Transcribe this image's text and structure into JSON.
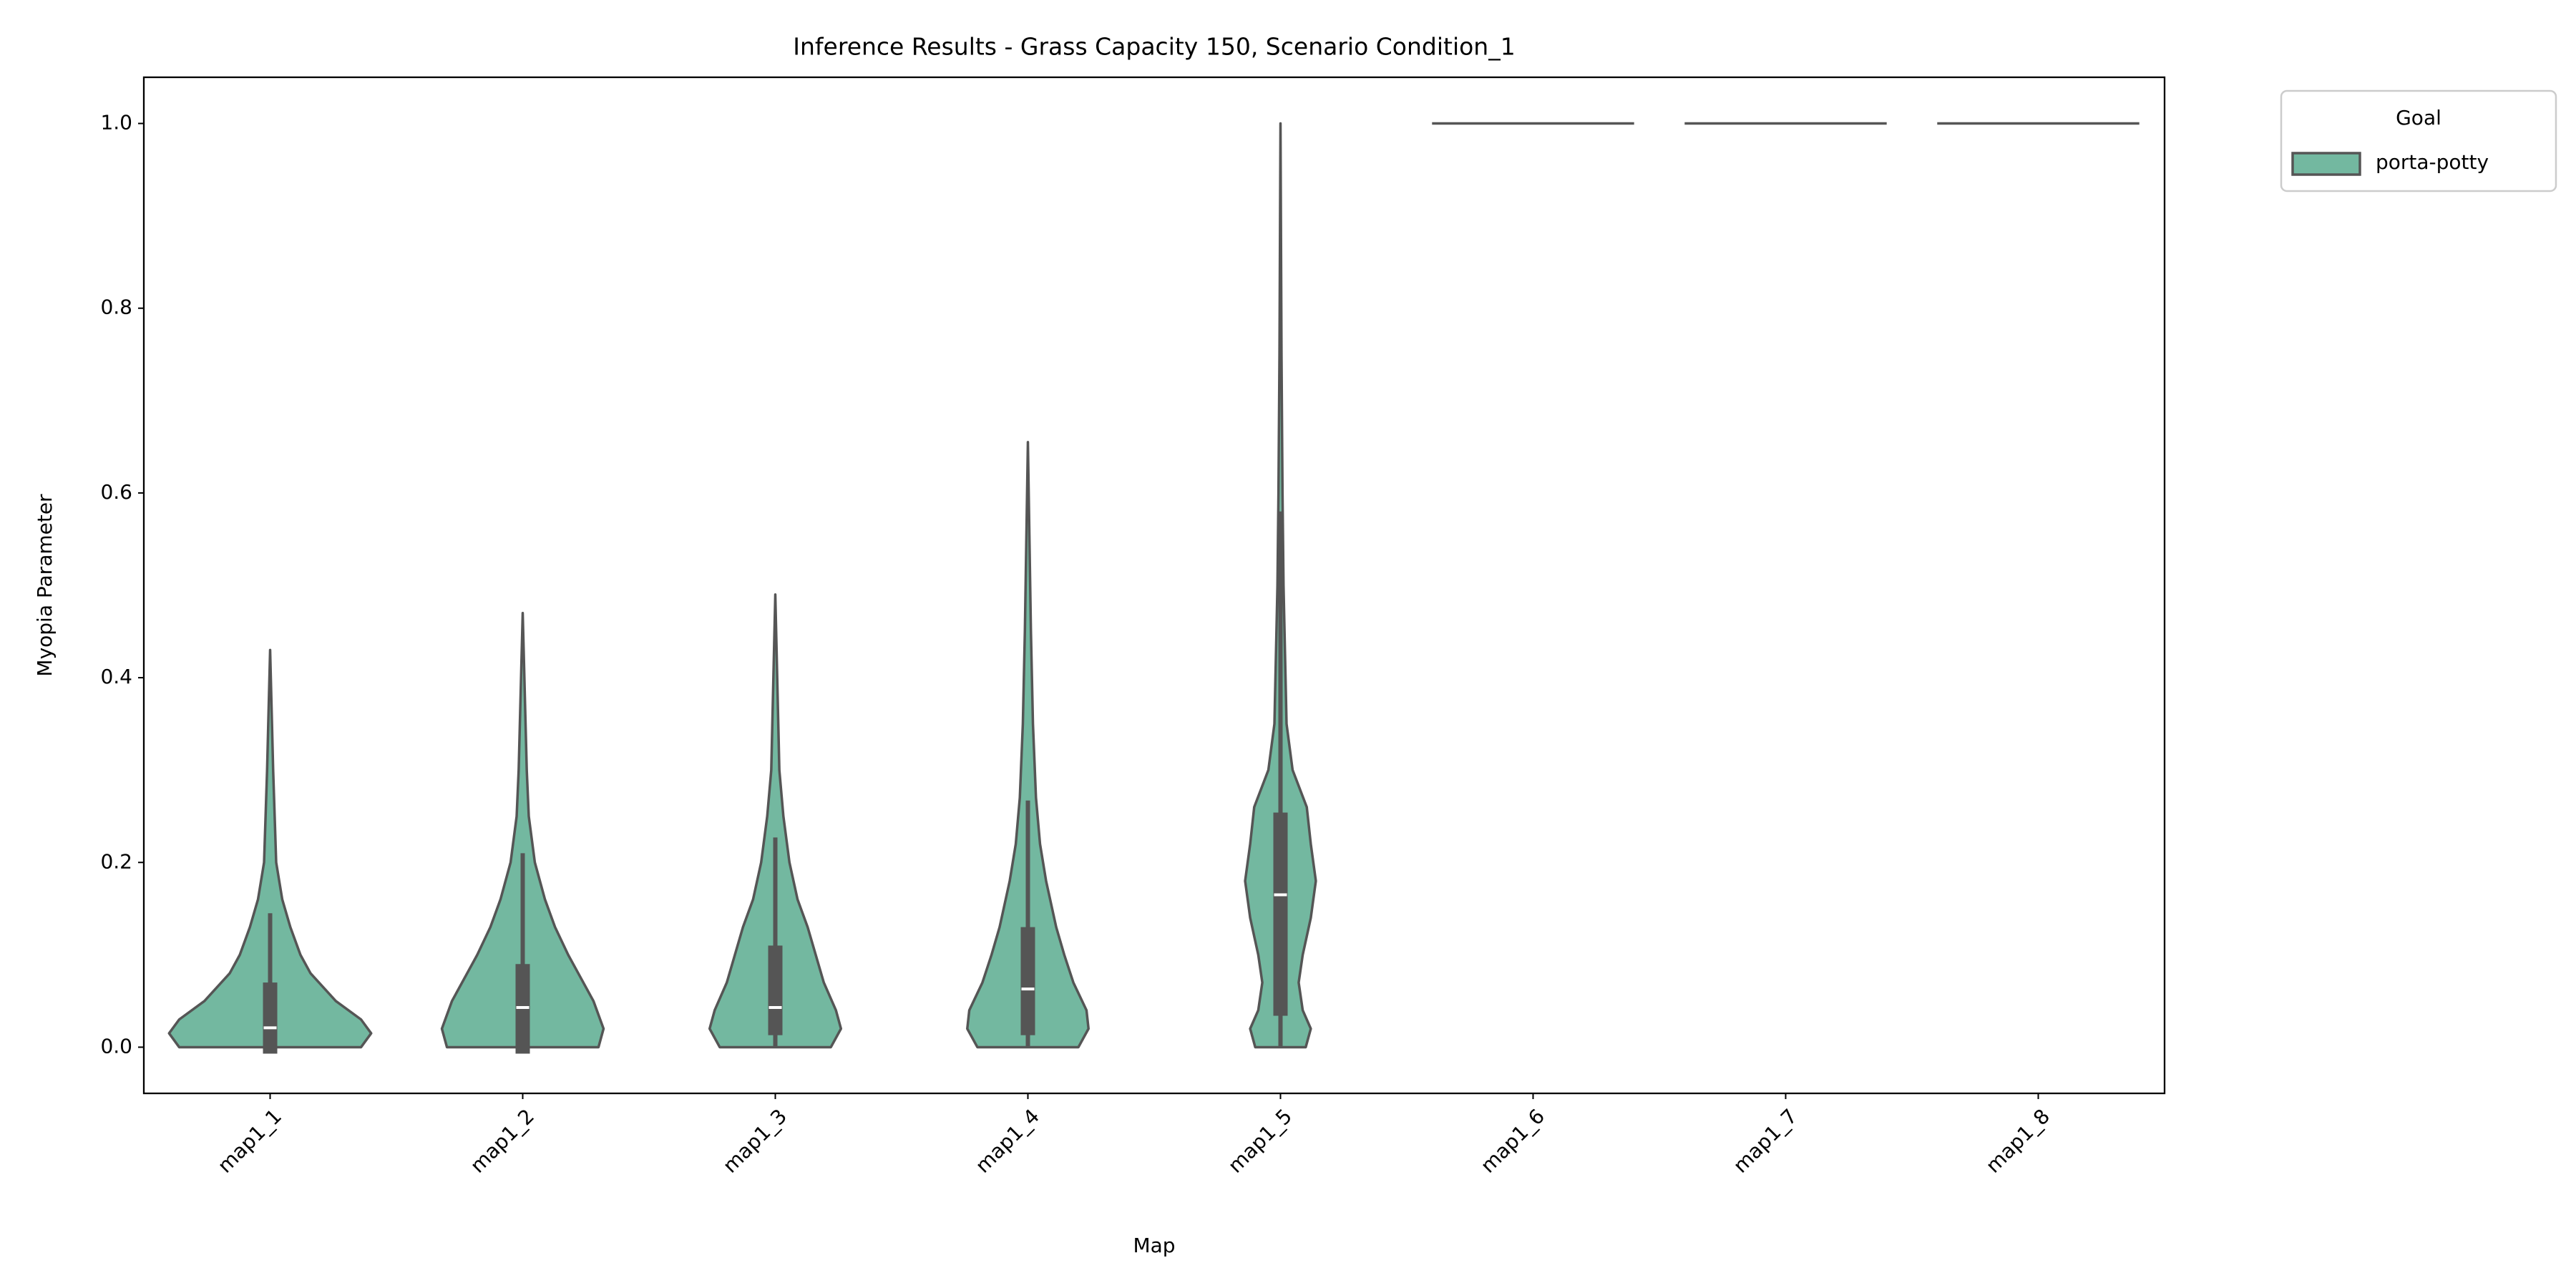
{
  "chart_data": {
    "type": "violin",
    "title": "Inference Results - Grass Capacity 150, Scenario Condition_1",
    "x_label": "Map",
    "y_label": "Myopia Parameter",
    "categories": [
      "map1_1",
      "map1_2",
      "map1_3",
      "map1_4",
      "map1_5",
      "map1_6",
      "map1_7",
      "map1_8"
    ],
    "ylim": [
      -0.05,
      1.05
    ],
    "yticks": [
      {
        "value": 0,
        "label": "0.0"
      },
      {
        "value": 0.2,
        "label": "0.2"
      },
      {
        "value": 0.4,
        "label": "0.4"
      },
      {
        "value": 0.6,
        "label": "0.6"
      },
      {
        "value": 0.8,
        "label": "0.8"
      },
      {
        "value": 1,
        "label": "1.0"
      }
    ],
    "legend": {
      "title": "Goal",
      "position": "outside upper right"
    },
    "series": [
      {
        "name": "porta-potty",
        "color": "#73b8a0",
        "edge_color": "#555555",
        "q1": [
          -0.007,
          -0.007,
          0.013,
          0.013,
          0.034,
          null,
          null,
          null
        ],
        "median": [
          0.021,
          0.043,
          0.043,
          0.063,
          0.165,
          1,
          1,
          1
        ],
        "q3": [
          0.07,
          0.09,
          0.11,
          0.13,
          0.254,
          null,
          null,
          null
        ],
        "whisker_low": [
          0,
          0,
          0,
          0,
          0,
          null,
          null,
          null
        ],
        "whisker_high": [
          0.145,
          0.21,
          0.227,
          0.267,
          0.58,
          null,
          null,
          null
        ],
        "density": [
          {
            "y": [
              0,
              0.015,
              0.03,
              0.05,
              0.08,
              0.1,
              0.13,
              0.16,
              0.2,
              0.3,
              0.43
            ],
            "w": [
              0.9,
              1.0,
              0.9,
              0.65,
              0.4,
              0.3,
              0.2,
              0.12,
              0.06,
              0.03,
              0
            ]
          },
          {
            "y": [
              0,
              0.02,
              0.05,
              0.08,
              0.1,
              0.13,
              0.16,
              0.2,
              0.25,
              0.3,
              0.47
            ],
            "w": [
              0.75,
              0.8,
              0.7,
              0.55,
              0.45,
              0.32,
              0.22,
              0.12,
              0.06,
              0.04,
              0
            ]
          },
          {
            "y": [
              0,
              0.02,
              0.04,
              0.07,
              0.1,
              0.13,
              0.16,
              0.2,
              0.25,
              0.3,
              0.49
            ],
            "w": [
              0.55,
              0.65,
              0.6,
              0.48,
              0.4,
              0.32,
              0.22,
              0.14,
              0.08,
              0.04,
              0
            ]
          },
          {
            "y": [
              0,
              0.02,
              0.04,
              0.07,
              0.1,
              0.13,
              0.18,
              0.22,
              0.27,
              0.35,
              0.45,
              0.655
            ],
            "w": [
              0.5,
              0.6,
              0.58,
              0.45,
              0.36,
              0.28,
              0.18,
              0.12,
              0.08,
              0.05,
              0.03,
              0
            ]
          },
          {
            "y": [
              0,
              0.02,
              0.04,
              0.07,
              0.1,
              0.14,
              0.18,
              0.22,
              0.26,
              0.3,
              0.35,
              0.4,
              0.5,
              0.6,
              0.75,
              1.0
            ],
            "w": [
              0.25,
              0.3,
              0.22,
              0.18,
              0.22,
              0.3,
              0.35,
              0.3,
              0.26,
              0.12,
              0.06,
              0.05,
              0.03,
              0.02,
              0.01,
              0
            ]
          },
          null,
          null,
          null
        ]
      }
    ]
  }
}
